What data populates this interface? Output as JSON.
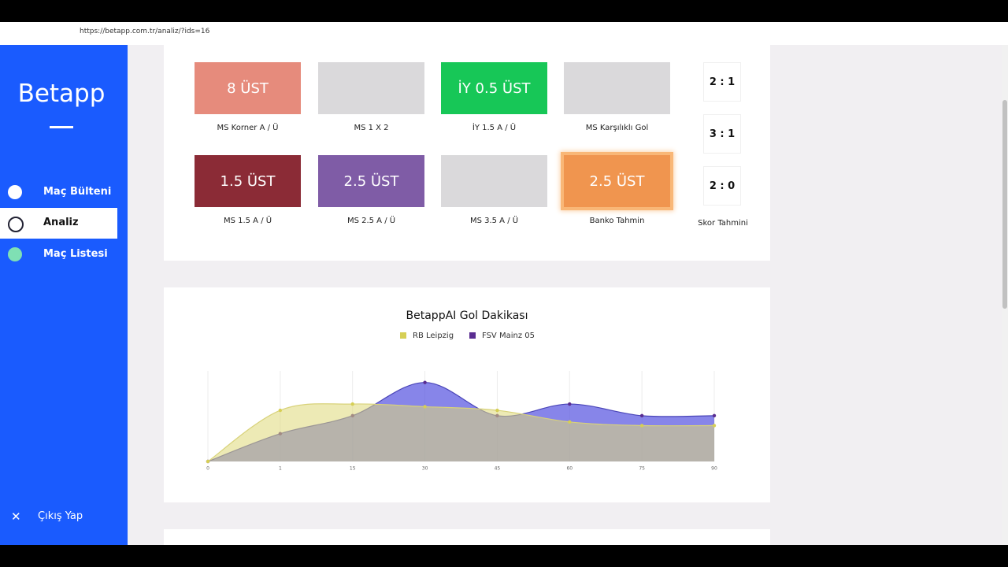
{
  "browser": {
    "url": "https://betapp.com.tr/analiz/?ids=16"
  },
  "sidebar": {
    "brand": "Betapp",
    "menu": [
      "Maç Bülteni",
      "Analiz",
      "Maç Listesi"
    ],
    "logout": "Çıkış Yap"
  },
  "predictions": {
    "cards": [
      {
        "value": "8 ÜST",
        "label": "MS Korner A / Ü",
        "color": "#e68b7c"
      },
      {
        "label": "MS 1 X 2",
        "color": "#dad9db"
      },
      {
        "value": "İY 0.5 ÜST",
        "label": "İY 1.5 A / Ü",
        "color": "#17c757"
      },
      {
        "label": "MS Karşılıklı Gol",
        "color": "#dad9db"
      },
      {
        "value": "1.5 ÜST",
        "label": "MS 1.5 A / Ü",
        "color": "#8b2b36"
      },
      {
        "value": "2.5 ÜST",
        "label": "MS 2.5 A / Ü",
        "color": "#7f5ca6"
      },
      {
        "label": "MS 3.5 A / Ü",
        "color": "#dad9db"
      },
      {
        "value": "2.5 ÜST",
        "label": "Banko Tahmin",
        "color": "#f0954f"
      }
    ],
    "scores": [
      "2 : 1",
      "3 : 1",
      "2 : 0"
    ],
    "score_label": "Skor Tahmini"
  },
  "chart_data": {
    "type": "area",
    "title": "BetappAI Gol Dakikası",
    "categories": [
      "0",
      "1",
      "15",
      "30",
      "45",
      "60",
      "75",
      "90"
    ],
    "series": [
      {
        "name": "RB Leipzig",
        "color": "#d6cf55",
        "values": [
          0,
          57,
          64,
          61,
          57,
          44,
          40,
          40
        ]
      },
      {
        "name": "FSV Mainz 05",
        "color": "#5a2d91",
        "values": [
          0,
          31,
          51,
          88,
          51,
          64,
          51,
          51
        ]
      }
    ]
  }
}
